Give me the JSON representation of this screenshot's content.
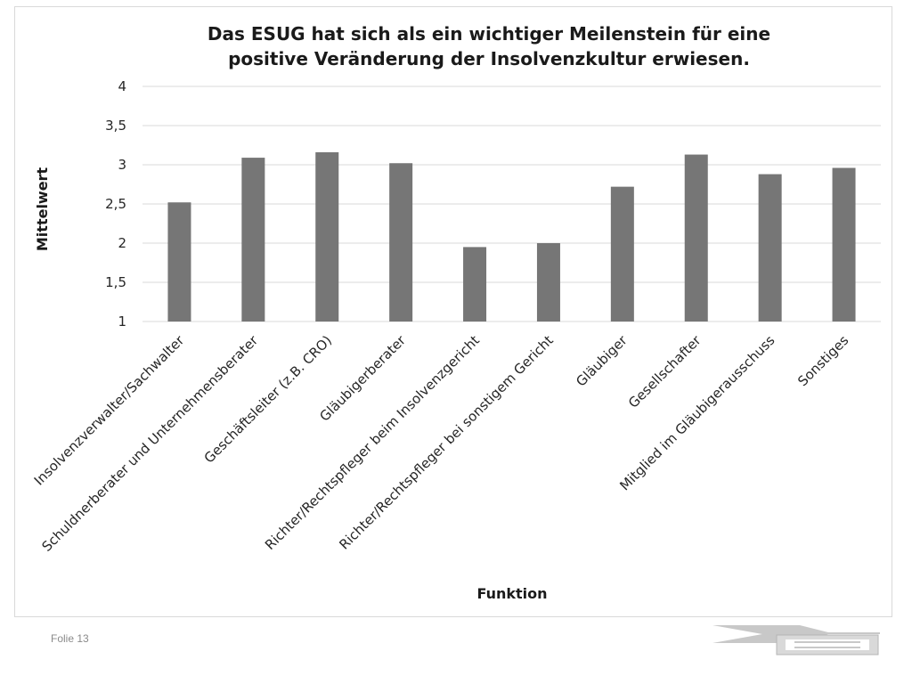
{
  "footer": {
    "slide_label": "Folie 13"
  },
  "chart_data": {
    "type": "bar",
    "title": [
      "Das ESUG hat sich als ein wichtiger Meilenstein für eine",
      "positive Veränderung der Insolvenzkultur erwiesen."
    ],
    "xlabel": "Funktion",
    "ylabel": "Mittelwert",
    "ylim": [
      1,
      4
    ],
    "yticks": [
      1,
      1.5,
      2,
      2.5,
      3,
      3.5,
      4
    ],
    "ytick_labels": [
      "1",
      "1,5",
      "2",
      "2,5",
      "3",
      "3,5",
      "4"
    ],
    "grid": true,
    "legend": "none",
    "bar_color": "#767676",
    "grid_color": "#d9d9d9",
    "categories": [
      "Insolvenzverwalter/Sachwalter",
      "Schuldnerberater und Unternehmensberater",
      "Geschäftsleiter (z.B. CRO)",
      "Gläubigerberater",
      "Richter/Rechtspfleger beim Insolvenzgericht",
      "Richter/Rechtspfleger bei sonstigem Gericht",
      "Gläubiger",
      "Gesellschafter",
      "Mitglied im Gläubigerausschuss",
      "Sonstiges"
    ],
    "values": [
      2.52,
      3.09,
      3.16,
      3.02,
      1.95,
      2.0,
      2.72,
      3.13,
      2.88,
      2.96
    ]
  }
}
